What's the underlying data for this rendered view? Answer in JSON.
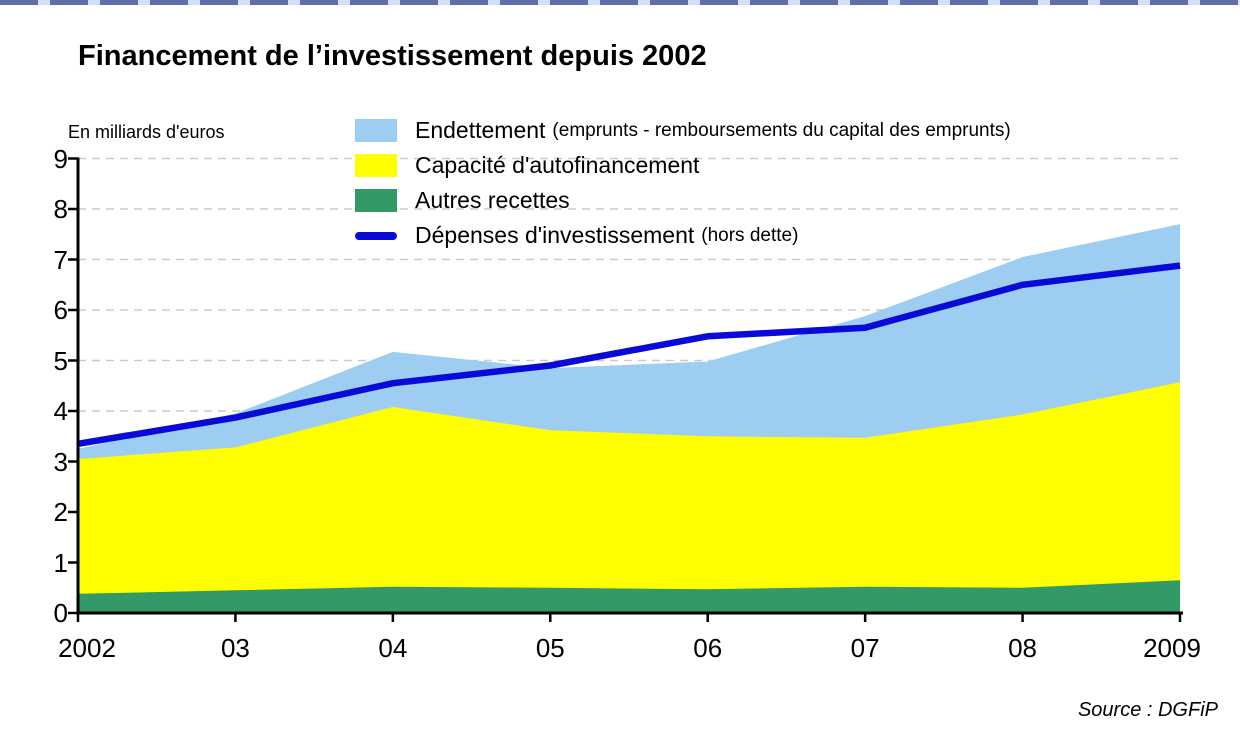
{
  "page": {
    "title": "Financement de l’investissement depuis 2002",
    "unit_label": "En milliards d'euros",
    "source": "Source : DGFiP"
  },
  "colors": {
    "endettement": "#9ECDF2",
    "autofinancement": "#FFFF00",
    "autres_recettes": "#339966",
    "depenses_line": "#0A0AD8",
    "gridline": "#CBCBCB",
    "axis": "#000000",
    "top_strip_dash": "#44549A",
    "top_strip_base": "#CCD8F4"
  },
  "legend": {
    "items": [
      {
        "type": "area",
        "color_key": "endettement",
        "label": "Endettement",
        "note": "(emprunts - remboursements du capital des emprunts)"
      },
      {
        "type": "area",
        "color_key": "autofinancement",
        "label": "Capacité d'autofinancement",
        "note": ""
      },
      {
        "type": "area",
        "color_key": "autres_recettes",
        "label": "Autres recettes",
        "note": ""
      },
      {
        "type": "line",
        "color_key": "depenses_line",
        "label": "Dépenses d'investissement",
        "note": "(hors dette)"
      }
    ]
  },
  "chart_data": {
    "type": "area",
    "stacked": true,
    "title": "Financement de l’investissement depuis 2002",
    "xlabel": "",
    "ylabel": "En milliards d'euros",
    "categories": [
      "2002",
      "03",
      "04",
      "05",
      "06",
      "07",
      "08",
      "2009"
    ],
    "x_values": [
      2002,
      2003,
      2004,
      2005,
      2006,
      2007,
      2008,
      2009
    ],
    "y_ticks": [
      0,
      1,
      2,
      3,
      4,
      5,
      6,
      7,
      8,
      9
    ],
    "ylim": [
      0,
      9
    ],
    "grid": "dashed horizontal gridlines at each integer",
    "legend_position": "top",
    "series": [
      {
        "name": "Autres recettes",
        "type": "area",
        "stack_order": 1,
        "color_key": "autres_recettes",
        "values": [
          0.38,
          0.45,
          0.52,
          0.5,
          0.47,
          0.52,
          0.5,
          0.65
        ]
      },
      {
        "name": "Capacité d'autofinancement",
        "type": "area",
        "stack_order": 2,
        "color_key": "autofinancement",
        "values": [
          2.67,
          2.83,
          3.56,
          3.12,
          3.03,
          2.95,
          3.43,
          3.92
        ]
      },
      {
        "name": "Endettement (emprunts - remboursements du capital des emprunts)",
        "type": "area",
        "stack_order": 3,
        "color_key": "endettement",
        "values": [
          0.2,
          0.67,
          1.09,
          1.23,
          1.48,
          2.41,
          3.12,
          3.13
        ]
      },
      {
        "name": "Dépenses d'investissement (hors dette)",
        "type": "line",
        "color_key": "depenses_line",
        "values": [
          3.35,
          3.87,
          4.55,
          4.9,
          5.48,
          5.65,
          6.5,
          6.88
        ]
      }
    ],
    "cumulative_tops": {
      "autres_recettes": [
        0.38,
        0.45,
        0.52,
        0.5,
        0.47,
        0.52,
        0.5,
        0.65
      ],
      "autofinancement": [
        3.05,
        3.28,
        4.08,
        3.62,
        3.5,
        3.47,
        3.93,
        4.57
      ],
      "endettement": [
        3.25,
        3.95,
        5.17,
        4.85,
        4.98,
        5.88,
        7.05,
        7.7
      ]
    }
  }
}
